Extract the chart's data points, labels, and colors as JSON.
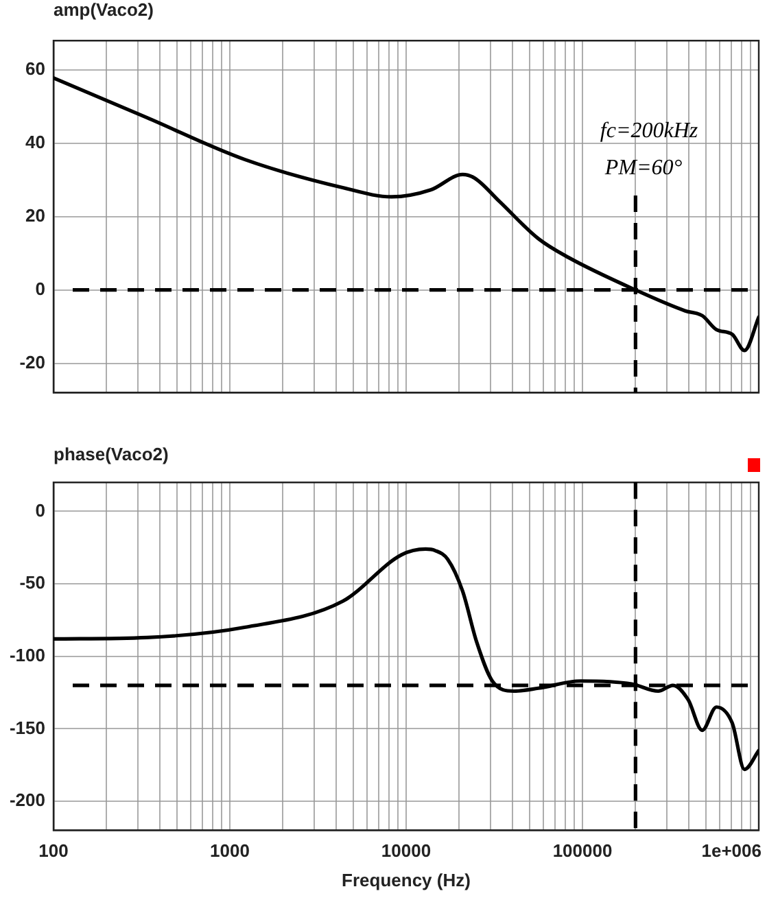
{
  "chart_data": [
    {
      "type": "line",
      "title": "amp(Vaco2)",
      "xlim": [
        100,
        1000000
      ],
      "ylim": [
        -28,
        68
      ],
      "log": "x",
      "grid": true,
      "legend": false,
      "tick_labels": "y",
      "marker": "none",
      "xticks": [
        100,
        {
          "value": 200,
          "label": null
        },
        {
          "value": 300,
          "label": null
        },
        {
          "value": 400,
          "label": null
        },
        {
          "value": 500,
          "label": null
        },
        {
          "value": 600,
          "label": null
        },
        {
          "value": 700,
          "label": null
        },
        {
          "value": 800,
          "label": null
        },
        {
          "value": 900,
          "label": null
        },
        1000,
        {
          "value": 2000,
          "label": null
        },
        {
          "value": 3000,
          "label": null
        },
        {
          "value": 4000,
          "label": null
        },
        {
          "value": 5000,
          "label": null
        },
        {
          "value": 6000,
          "label": null
        },
        {
          "value": 7000,
          "label": null
        },
        {
          "value": 8000,
          "label": null
        },
        {
          "value": 9000,
          "label": null
        },
        10000,
        {
          "value": 20000,
          "label": null
        },
        {
          "value": 30000,
          "label": null
        },
        {
          "value": 40000,
          "label": null
        },
        {
          "value": 50000,
          "label": null
        },
        {
          "value": 60000,
          "label": null
        },
        {
          "value": 70000,
          "label": null
        },
        {
          "value": 80000,
          "label": null
        },
        {
          "value": 90000,
          "label": null
        },
        100000,
        {
          "value": 200000,
          "label": null
        },
        {
          "value": 300000,
          "label": null
        },
        {
          "value": 400000,
          "label": null
        },
        {
          "value": 500000,
          "label": null
        },
        {
          "value": 600000,
          "label": null
        },
        {
          "value": 700000,
          "label": null
        },
        {
          "value": 800000,
          "label": null
        },
        {
          "value": 900000,
          "label": null
        },
        1000000
      ],
      "yticks": [
        -20,
        0,
        20,
        40,
        60
      ],
      "x": [
        100,
        338,
        1211,
        4365,
        8260,
        13800,
        20900,
        24500,
        33900,
        56200,
        83000,
        200000,
        383000,
        478000,
        575000,
        707000,
        830000,
        1000000
      ],
      "series": [
        {
          "color": "#000000",
          "values": [
            57.8,
            47,
            35.6,
            27.9,
            25.4,
            27.3,
            31.5,
            30.5,
            24.1,
            14,
            8.9,
            0,
            -5.7,
            -7,
            -10.8,
            -12.1,
            -16.5,
            -7.4
          ]
        }
      ],
      "ref_lines": [
        {
          "axis": "y",
          "value": 0,
          "line_style": "dashed",
          "color": "#000000"
        },
        {
          "axis": "x",
          "value": 200000,
          "line_style": "dashed",
          "color": "#000000"
        }
      ],
      "annotations": [
        "fc=200kHz",
        "PM=60°"
      ]
    },
    {
      "type": "line",
      "title": "phase(Vaco2)",
      "xlabel": "Frequency (Hz)",
      "xlim": [
        100,
        1000000
      ],
      "ylim": [
        -220,
        20
      ],
      "log": "x",
      "grid": true,
      "legend": false,
      "marker": "none",
      "xticks": [
        100,
        {
          "value": 200,
          "label": null
        },
        {
          "value": 300,
          "label": null
        },
        {
          "value": 400,
          "label": null
        },
        {
          "value": 500,
          "label": null
        },
        {
          "value": 600,
          "label": null
        },
        {
          "value": 700,
          "label": null
        },
        {
          "value": 800,
          "label": null
        },
        {
          "value": 900,
          "label": null
        },
        1000,
        {
          "value": 2000,
          "label": null
        },
        {
          "value": 3000,
          "label": null
        },
        {
          "value": 4000,
          "label": null
        },
        {
          "value": 5000,
          "label": null
        },
        {
          "value": 6000,
          "label": null
        },
        {
          "value": 7000,
          "label": null
        },
        {
          "value": 8000,
          "label": null
        },
        {
          "value": 9000,
          "label": null
        },
        10000,
        {
          "value": 20000,
          "label": null
        },
        {
          "value": 30000,
          "label": null
        },
        {
          "value": 40000,
          "label": null
        },
        {
          "value": 50000,
          "label": null
        },
        {
          "value": 60000,
          "label": null
        },
        {
          "value": 70000,
          "label": null
        },
        {
          "value": 80000,
          "label": null
        },
        {
          "value": 90000,
          "label": null
        },
        100000,
        {
          "value": 200000,
          "label": null
        },
        {
          "value": 300000,
          "label": null
        },
        {
          "value": 400000,
          "label": null
        },
        {
          "value": 500000,
          "label": null
        },
        {
          "value": 600000,
          "label": null
        },
        {
          "value": 700000,
          "label": null
        },
        {
          "value": 800000,
          "label": null
        },
        {
          "value": 900000,
          "label": null
        },
        {
          "value": 1000000,
          "label": "1e+006"
        }
      ],
      "yticks": [
        -200,
        -150,
        -100,
        -50,
        0
      ],
      "x": [
        100,
        338,
        1211,
        4365,
        9400,
        12900,
        14600,
        17200,
        20900,
        25100,
        30800,
        40800,
        56200,
        98000,
        190000,
        269000,
        326000,
        398000,
        478000,
        575000,
        707000,
        830000,
        1000000
      ],
      "series": [
        {
          "color": "#000000",
          "values": [
            -88,
            -87,
            -80,
            -62,
            -30,
            -26,
            -27,
            -33,
            -55,
            -90,
            -117,
            -124,
            -122,
            -117,
            -119,
            -124,
            -120,
            -130,
            -151,
            -135,
            -146,
            -178,
            -165
          ]
        }
      ],
      "ref_lines": [
        {
          "axis": "y",
          "value": -120,
          "line_style": "dashed",
          "color": "#000000"
        },
        {
          "axis": "x",
          "value": 200000,
          "line_style": "dashed",
          "color": "#000000"
        }
      ]
    }
  ]
}
